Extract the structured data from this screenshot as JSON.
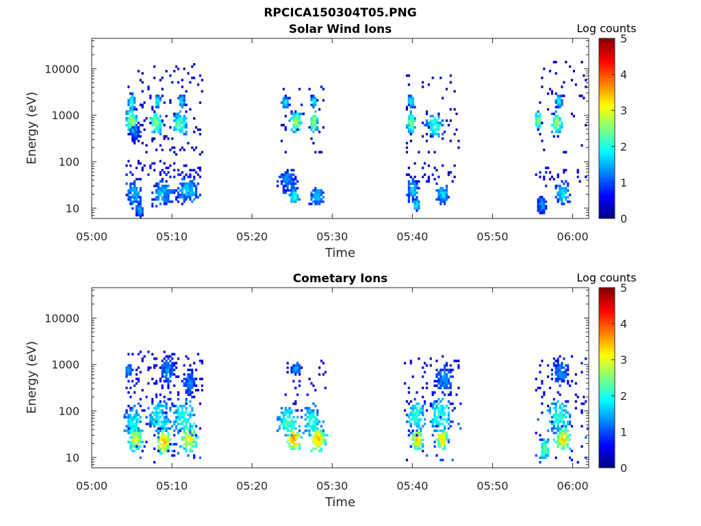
{
  "figure": {
    "title": "RPCICA150304T05.PNG"
  },
  "chart_data": [
    {
      "type": "heatmap",
      "title": "Solar Wind Ions",
      "xlabel": "Time",
      "ylabel": "Energy (eV)",
      "x_range": [
        "05:00",
        "06:02"
      ],
      "y_scale": "log",
      "y_range": [
        6,
        45000
      ],
      "x_ticks": [
        "05:00",
        "05:10",
        "05:20",
        "05:30",
        "05:40",
        "05:50",
        "06:00"
      ],
      "y_ticks": [
        "10",
        "100",
        "1000",
        "10000"
      ],
      "colorbar": {
        "title": "Log counts",
        "range": [
          0,
          5
        ],
        "ticks": [
          "0",
          "1",
          "2",
          "3",
          "4",
          "5"
        ],
        "colormap": "jet"
      },
      "clusters": [
        {
          "t": 5.0,
          "e": 750,
          "v": 2.5,
          "dt": 0.6,
          "de": 0.22
        },
        {
          "t": 5.0,
          "e": 1900,
          "v": 1.8,
          "dt": 0.3,
          "de": 0.15
        },
        {
          "t": 5.4,
          "e": 450,
          "v": 1.0,
          "dt": 0.6,
          "de": 0.2
        },
        {
          "t": 8.0,
          "e": 700,
          "v": 2.4,
          "dt": 0.6,
          "de": 0.2
        },
        {
          "t": 8.2,
          "e": 2000,
          "v": 1.7,
          "dt": 0.3,
          "de": 0.12
        },
        {
          "t": 11.0,
          "e": 650,
          "v": 2.2,
          "dt": 0.8,
          "de": 0.2
        },
        {
          "t": 11.2,
          "e": 2000,
          "v": 1.6,
          "dt": 0.3,
          "de": 0.1
        },
        {
          "t": 5.3,
          "e": 20,
          "v": 1.4,
          "dt": 0.9,
          "de": 0.25
        },
        {
          "t": 6.0,
          "e": 9,
          "v": 1.3,
          "dt": 0.4,
          "de": 0.12
        },
        {
          "t": 8.8,
          "e": 22,
          "v": 1.4,
          "dt": 1.2,
          "de": 0.25
        },
        {
          "t": 12.0,
          "e": 25,
          "v": 1.5,
          "dt": 1.4,
          "de": 0.25
        },
        {
          "t": 25.5,
          "e": 700,
          "v": 2.6,
          "dt": 0.6,
          "de": 0.18
        },
        {
          "t": 24.2,
          "e": 1900,
          "v": 1.7,
          "dt": 0.3,
          "de": 0.1
        },
        {
          "t": 27.7,
          "e": 700,
          "v": 2.5,
          "dt": 0.4,
          "de": 0.2
        },
        {
          "t": 27.7,
          "e": 2000,
          "v": 1.7,
          "dt": 0.3,
          "de": 0.1
        },
        {
          "t": 24.5,
          "e": 40,
          "v": 1.2,
          "dt": 1.0,
          "de": 0.25
        },
        {
          "t": 25.3,
          "e": 18,
          "v": 1.8,
          "dt": 0.5,
          "de": 0.15
        },
        {
          "t": 28.1,
          "e": 18,
          "v": 1.5,
          "dt": 0.8,
          "de": 0.2
        },
        {
          "t": 39.8,
          "e": 700,
          "v": 2.4,
          "dt": 0.4,
          "de": 0.2
        },
        {
          "t": 39.8,
          "e": 2000,
          "v": 1.6,
          "dt": 0.3,
          "de": 0.1
        },
        {
          "t": 42.8,
          "e": 600,
          "v": 2.0,
          "dt": 0.8,
          "de": 0.22
        },
        {
          "t": 40.0,
          "e": 25,
          "v": 1.5,
          "dt": 0.6,
          "de": 0.2
        },
        {
          "t": 40.5,
          "e": 12,
          "v": 1.6,
          "dt": 0.3,
          "de": 0.1
        },
        {
          "t": 43.8,
          "e": 20,
          "v": 1.5,
          "dt": 0.7,
          "de": 0.2
        },
        {
          "t": 55.7,
          "e": 750,
          "v": 2.5,
          "dt": 0.3,
          "de": 0.15
        },
        {
          "t": 58.0,
          "e": 700,
          "v": 2.5,
          "dt": 0.6,
          "de": 0.2
        },
        {
          "t": 58.3,
          "e": 2000,
          "v": 1.7,
          "dt": 0.3,
          "de": 0.12
        },
        {
          "t": 56.2,
          "e": 12,
          "v": 1.2,
          "dt": 0.5,
          "de": 0.15
        },
        {
          "t": 58.8,
          "e": 20,
          "v": 1.6,
          "dt": 0.8,
          "de": 0.2
        }
      ],
      "scatter_regions": [
        {
          "t0": 4.3,
          "t1": 13.8,
          "e0": 150,
          "e1": 12000,
          "n": 120,
          "v": 0.4
        },
        {
          "t0": 4.3,
          "t1": 13.8,
          "e0": 40,
          "e1": 100,
          "n": 60,
          "v": 0.6
        },
        {
          "t0": 23.5,
          "t1": 29.0,
          "e0": 150,
          "e1": 4000,
          "n": 35,
          "v": 0.4
        },
        {
          "t0": 39.2,
          "t1": 45.8,
          "e0": 150,
          "e1": 8000,
          "n": 50,
          "v": 0.4
        },
        {
          "t0": 39.2,
          "t1": 45.8,
          "e0": 35,
          "e1": 100,
          "n": 30,
          "v": 0.6
        },
        {
          "t0": 55.3,
          "t1": 61.8,
          "e0": 150,
          "e1": 15000,
          "n": 50,
          "v": 0.4
        },
        {
          "t0": 55.3,
          "t1": 61.8,
          "e0": 30,
          "e1": 80,
          "n": 25,
          "v": 0.6
        }
      ]
    },
    {
      "type": "heatmap",
      "title": "Cometary Ions",
      "xlabel": "Time",
      "ylabel": "Energy (eV)",
      "x_range": [
        "05:00",
        "06:02"
      ],
      "y_scale": "log",
      "y_range": [
        6,
        45000
      ],
      "x_ticks": [
        "05:00",
        "05:10",
        "05:20",
        "05:30",
        "05:40",
        "05:50",
        "06:00"
      ],
      "y_ticks": [
        "10",
        "100",
        "1000",
        "10000"
      ],
      "colorbar": {
        "title": "Log counts",
        "range": [
          0,
          5
        ],
        "ticks": [
          "0",
          "1",
          "2",
          "3",
          "4",
          "5"
        ],
        "colormap": "jet"
      },
      "clusters": [
        {
          "t": 5.5,
          "e": 25,
          "v": 2.8,
          "dt": 0.8,
          "de": 0.25
        },
        {
          "t": 5.2,
          "e": 60,
          "v": 1.8,
          "dt": 1.0,
          "de": 0.3
        },
        {
          "t": 4.6,
          "e": 750,
          "v": 1.3,
          "dt": 0.3,
          "de": 0.1
        },
        {
          "t": 9.0,
          "e": 22,
          "v": 3.3,
          "dt": 0.8,
          "de": 0.25
        },
        {
          "t": 8.5,
          "e": 70,
          "v": 2.0,
          "dt": 1.2,
          "de": 0.35
        },
        {
          "t": 9.5,
          "e": 700,
          "v": 1.2,
          "dt": 0.8,
          "de": 0.3
        },
        {
          "t": 12.2,
          "e": 25,
          "v": 3.0,
          "dt": 0.9,
          "de": 0.25
        },
        {
          "t": 11.5,
          "e": 70,
          "v": 2.0,
          "dt": 1.3,
          "de": 0.35
        },
        {
          "t": 12.2,
          "e": 400,
          "v": 1.1,
          "dt": 0.8,
          "de": 0.3
        },
        {
          "t": 25.2,
          "e": 25,
          "v": 3.6,
          "dt": 0.7,
          "de": 0.2
        },
        {
          "t": 24.5,
          "e": 60,
          "v": 2.2,
          "dt": 1.2,
          "de": 0.3
        },
        {
          "t": 25.5,
          "e": 800,
          "v": 1.3,
          "dt": 0.5,
          "de": 0.1
        },
        {
          "t": 28.2,
          "e": 25,
          "v": 3.3,
          "dt": 0.8,
          "de": 0.25
        },
        {
          "t": 27.5,
          "e": 60,
          "v": 2.0,
          "dt": 1.0,
          "de": 0.3
        },
        {
          "t": 40.6,
          "e": 25,
          "v": 3.2,
          "dt": 0.6,
          "de": 0.2
        },
        {
          "t": 40.5,
          "e": 80,
          "v": 2.0,
          "dt": 1.0,
          "de": 0.3
        },
        {
          "t": 43.7,
          "e": 25,
          "v": 3.2,
          "dt": 0.6,
          "de": 0.2
        },
        {
          "t": 43.5,
          "e": 80,
          "v": 2.0,
          "dt": 1.2,
          "de": 0.35
        },
        {
          "t": 44.0,
          "e": 500,
          "v": 1.2,
          "dt": 1.0,
          "de": 0.3
        },
        {
          "t": 58.8,
          "e": 25,
          "v": 3.2,
          "dt": 0.8,
          "de": 0.2
        },
        {
          "t": 58.3,
          "e": 70,
          "v": 2.0,
          "dt": 1.2,
          "de": 0.35
        },
        {
          "t": 56.5,
          "e": 15,
          "v": 2.3,
          "dt": 0.5,
          "de": 0.2
        },
        {
          "t": 58.5,
          "e": 700,
          "v": 1.2,
          "dt": 1.0,
          "de": 0.25
        }
      ],
      "scatter_regions": [
        {
          "t0": 4.3,
          "t1": 13.8,
          "e0": 100,
          "e1": 2000,
          "n": 110,
          "v": 0.6
        },
        {
          "t0": 4.3,
          "t1": 13.8,
          "e0": 7,
          "e1": 100,
          "n": 60,
          "v": 0.9
        },
        {
          "t0": 23.5,
          "t1": 29.3,
          "e0": 100,
          "e1": 1200,
          "n": 30,
          "v": 0.6
        },
        {
          "t0": 39.0,
          "t1": 46.0,
          "e0": 100,
          "e1": 1500,
          "n": 60,
          "v": 0.6
        },
        {
          "t0": 39.0,
          "t1": 46.0,
          "e0": 8,
          "e1": 100,
          "n": 30,
          "v": 0.9
        },
        {
          "t0": 55.3,
          "t1": 61.8,
          "e0": 100,
          "e1": 1500,
          "n": 50,
          "v": 0.6
        },
        {
          "t0": 55.3,
          "t1": 61.8,
          "e0": 7,
          "e1": 100,
          "n": 25,
          "v": 0.9
        }
      ]
    }
  ]
}
